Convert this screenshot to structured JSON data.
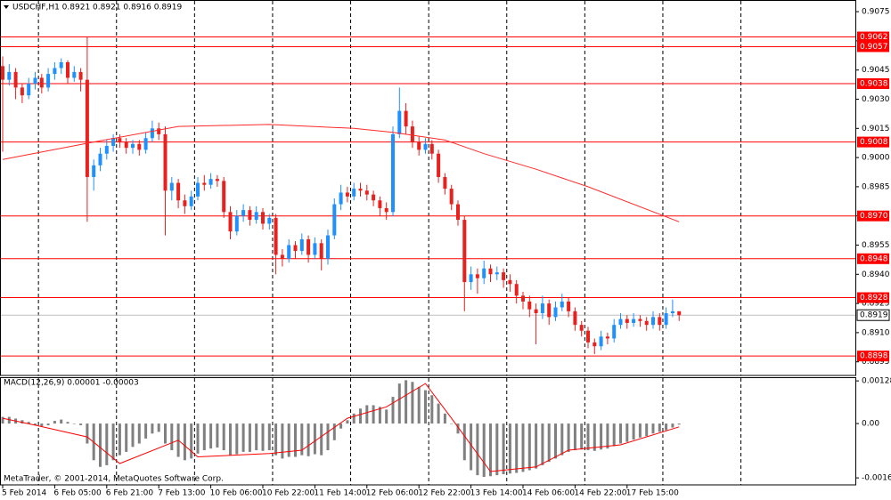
{
  "chart_data": [
    {
      "type": "candlestick",
      "title": "USDCHF,H1 0.8921 0.8921 0.8916 0.8919",
      "up_color": "#1e90ff",
      "down_color": "#e8211f",
      "ohlc": [
        [
          0.9047,
          0.9052,
          0.9003,
          0.904
        ],
        [
          0.904,
          0.9048,
          0.9037,
          0.9044
        ],
        [
          0.9044,
          0.9046,
          0.903,
          0.9036
        ],
        [
          0.9036,
          0.9038,
          0.9028,
          0.9032
        ],
        [
          0.9032,
          0.9041,
          0.903,
          0.9038
        ],
        [
          0.9038,
          0.9044,
          0.9035,
          0.9041
        ],
        [
          0.9041,
          0.9043,
          0.9033,
          0.9036
        ],
        [
          0.9036,
          0.9046,
          0.9034,
          0.9043
        ],
        [
          0.9043,
          0.9049,
          0.904,
          0.9046
        ],
        [
          0.9046,
          0.9051,
          0.9043,
          0.9049
        ],
        [
          0.9049,
          0.905,
          0.9038,
          0.9041
        ],
        [
          0.9041,
          0.9047,
          0.9039,
          0.9044
        ],
        [
          0.9044,
          0.9046,
          0.9034,
          0.904
        ],
        [
          0.904,
          0.9062,
          0.8967,
          0.899
        ],
        [
          0.899,
          0.8999,
          0.8983,
          0.8996
        ],
        [
          0.8996,
          0.9005,
          0.8993,
          0.9002
        ],
        [
          0.9002,
          0.9009,
          0.8999,
          0.9006
        ],
        [
          0.9006,
          0.9012,
          0.9003,
          0.901
        ],
        [
          0.901,
          0.9012,
          0.9005,
          0.9008
        ],
        [
          0.9008,
          0.901,
          0.9002,
          0.9005
        ],
        [
          0.9005,
          0.9009,
          0.9002,
          0.9007
        ],
        [
          0.9007,
          0.9009,
          0.9001,
          0.9004
        ],
        [
          0.9004,
          0.9013,
          0.9002,
          0.901
        ],
        [
          0.901,
          0.9019,
          0.9008,
          0.9015
        ],
        [
          0.9015,
          0.9018,
          0.9009,
          0.9012
        ],
        [
          0.9012,
          0.9016,
          0.896,
          0.8983
        ],
        [
          0.8983,
          0.899,
          0.8978,
          0.8987
        ],
        [
          0.8987,
          0.8989,
          0.8974,
          0.8978
        ],
        [
          0.8978,
          0.8981,
          0.8971,
          0.8975
        ],
        [
          0.8975,
          0.8983,
          0.8973,
          0.898
        ],
        [
          0.898,
          0.899,
          0.8978,
          0.8987
        ],
        [
          0.8987,
          0.8991,
          0.8983,
          0.8986
        ],
        [
          0.8986,
          0.8992,
          0.8984,
          0.8989
        ],
        [
          0.8989,
          0.8991,
          0.8985,
          0.8988
        ],
        [
          0.8988,
          0.899,
          0.8969,
          0.8972
        ],
        [
          0.8972,
          0.8975,
          0.8958,
          0.8962
        ],
        [
          0.8962,
          0.8973,
          0.896,
          0.897
        ],
        [
          0.897,
          0.8976,
          0.8967,
          0.8973
        ],
        [
          0.8973,
          0.8975,
          0.8965,
          0.8968
        ],
        [
          0.8968,
          0.8975,
          0.8966,
          0.8972
        ],
        [
          0.8972,
          0.8974,
          0.8963,
          0.8966
        ],
        [
          0.8966,
          0.8971,
          0.8963,
          0.8969
        ],
        [
          0.8969,
          0.8971,
          0.894,
          0.895
        ],
        [
          0.895,
          0.8953,
          0.8944,
          0.8948
        ],
        [
          0.8948,
          0.8958,
          0.8946,
          0.8955
        ],
        [
          0.8955,
          0.8957,
          0.8948,
          0.8952
        ],
        [
          0.8952,
          0.8961,
          0.895,
          0.8958
        ],
        [
          0.8958,
          0.896,
          0.8946,
          0.895
        ],
        [
          0.895,
          0.8959,
          0.8948,
          0.8956
        ],
        [
          0.8956,
          0.8958,
          0.8942,
          0.8948
        ],
        [
          0.8948,
          0.8963,
          0.8945,
          0.896
        ],
        [
          0.896,
          0.8979,
          0.8958,
          0.8976
        ],
        [
          0.8976,
          0.8986,
          0.8973,
          0.8982
        ],
        [
          0.8982,
          0.8985,
          0.8977,
          0.898
        ],
        [
          0.898,
          0.8987,
          0.8978,
          0.8984
        ],
        [
          0.8984,
          0.8987,
          0.898,
          0.8983
        ],
        [
          0.8983,
          0.8986,
          0.8978,
          0.8981
        ],
        [
          0.8981,
          0.8983,
          0.8975,
          0.8978
        ],
        [
          0.8978,
          0.898,
          0.897,
          0.8974
        ],
        [
          0.8974,
          0.8977,
          0.8968,
          0.8972
        ],
        [
          0.8972,
          0.9016,
          0.897,
          0.9012
        ],
        [
          0.9012,
          0.9036,
          0.901,
          0.9024
        ],
        [
          0.9024,
          0.9028,
          0.9012,
          0.9016
        ],
        [
          0.9016,
          0.9019,
          0.9005,
          0.9008
        ],
        [
          0.9008,
          0.9011,
          0.9001,
          0.9004
        ],
        [
          0.9004,
          0.901,
          0.9002,
          0.9007
        ],
        [
          0.9007,
          0.9009,
          0.8999,
          0.9002
        ],
        [
          0.9002,
          0.9004,
          0.8987,
          0.899
        ],
        [
          0.899,
          0.8992,
          0.8981,
          0.8984
        ],
        [
          0.8984,
          0.8986,
          0.8973,
          0.8976
        ],
        [
          0.8976,
          0.8978,
          0.8965,
          0.8968
        ],
        [
          0.8968,
          0.897,
          0.8921,
          0.8936
        ],
        [
          0.8936,
          0.8944,
          0.8932,
          0.894
        ],
        [
          0.894,
          0.8943,
          0.893,
          0.8938
        ],
        [
          0.8938,
          0.8947,
          0.8935,
          0.8943
        ],
        [
          0.8943,
          0.8945,
          0.8936,
          0.894
        ],
        [
          0.894,
          0.8944,
          0.8937,
          0.8941
        ],
        [
          0.8941,
          0.8943,
          0.8933,
          0.8937
        ],
        [
          0.8937,
          0.894,
          0.8931,
          0.8935
        ],
        [
          0.8935,
          0.8937,
          0.8925,
          0.8929
        ],
        [
          0.8929,
          0.8931,
          0.8922,
          0.8926
        ],
        [
          0.8926,
          0.8929,
          0.8918,
          0.8922
        ],
        [
          0.8922,
          0.8925,
          0.8904,
          0.892
        ],
        [
          0.892,
          0.8929,
          0.8917,
          0.8925
        ],
        [
          0.8925,
          0.8927,
          0.8914,
          0.8918
        ],
        [
          0.8918,
          0.8926,
          0.8916,
          0.8923
        ],
        [
          0.8923,
          0.893,
          0.8921,
          0.8926
        ],
        [
          0.8926,
          0.8928,
          0.8918,
          0.8921
        ],
        [
          0.8921,
          0.8923,
          0.8911,
          0.8914
        ],
        [
          0.8914,
          0.8916,
          0.8908,
          0.8911
        ],
        [
          0.8911,
          0.8913,
          0.8902,
          0.8905
        ],
        [
          0.8905,
          0.8907,
          0.8899,
          0.8903
        ],
        [
          0.8903,
          0.8911,
          0.8901,
          0.8908
        ],
        [
          0.8908,
          0.891,
          0.8904,
          0.8907
        ],
        [
          0.8907,
          0.8917,
          0.8905,
          0.8914
        ],
        [
          0.8914,
          0.892,
          0.8912,
          0.8917
        ],
        [
          0.8917,
          0.8919,
          0.8912,
          0.8915
        ],
        [
          0.8915,
          0.892,
          0.8913,
          0.8917
        ],
        [
          0.8917,
          0.8919,
          0.8913,
          0.8916
        ],
        [
          0.8916,
          0.8918,
          0.8911,
          0.8914
        ],
        [
          0.8914,
          0.8921,
          0.8912,
          0.8918
        ],
        [
          0.8918,
          0.892,
          0.8911,
          0.8914
        ],
        [
          0.8914,
          0.8923,
          0.8912,
          0.892
        ],
        [
          0.892,
          0.8927,
          0.8918,
          0.8921
        ],
        [
          0.8921,
          0.8921,
          0.8916,
          0.8919
        ]
      ],
      "ma": {
        "x": [
          0,
          14,
          27,
          41,
          54,
          60,
          68,
          74,
          82,
          90,
          104
        ],
        "values": [
          0.8999,
          0.9008,
          0.9016,
          0.9017,
          0.9015,
          0.9013,
          0.9009,
          0.9002,
          0.8994,
          0.8985,
          0.8967
        ],
        "color": "#ff2a2a"
      },
      "levels": {
        "values": [
          0.9062,
          0.9057,
          0.9038,
          0.9008,
          0.897,
          0.8948,
          0.8928,
          0.8898
        ],
        "value_labels": [
          "0.9062",
          "0.9057",
          "0.9038",
          "0.9008",
          "0.8970",
          "0.8948",
          "0.8928",
          "0.8898"
        ],
        "color": "#ff0000"
      },
      "current_price": 0.8919,
      "ylim": [
        0.8888,
        0.9081
      ],
      "yticks": [
        0.8895,
        {
          "value": 0.891,
          "label": "0.8910"
        },
        0.8925,
        {
          "value": 0.894,
          "label": "0.8940"
        },
        0.8955,
        {
          "value": 0.897,
          "label": "0.8970"
        },
        0.8985,
        {
          "value": 0.9,
          "label": "0.9000"
        },
        0.9015,
        {
          "value": 0.903,
          "label": "0.9030"
        },
        0.9045,
        {
          "value": 0.906,
          "label": "0.9060"
        },
        0.9075
      ],
      "xticks": [
        {
          "value": 0,
          "label": "5 Feb 2014"
        },
        {
          "value": 8,
          "label": "6 Feb 05:00"
        },
        {
          "value": 16,
          "label": "6 Feb 21:00"
        },
        {
          "value": 24,
          "label": "7 Feb 13:00"
        },
        {
          "value": 32,
          "label": "10 Feb 06:00"
        },
        {
          "value": 40,
          "label": "10 Feb 22:00"
        },
        {
          "value": 48,
          "label": "11 Feb 14:00"
        },
        {
          "value": 56,
          "label": "12 Feb 06:00"
        },
        {
          "value": 64,
          "label": "12 Feb 22:00"
        },
        {
          "value": 72,
          "label": "13 Feb 14:00"
        },
        {
          "value": 80,
          "label": "14 Feb 06:00"
        },
        {
          "value": 88,
          "label": "14 Feb 22:00"
        },
        {
          "value": 96,
          "label": "17 Feb 15:00"
        }
      ]
    },
    {
      "type": "macd",
      "title": "MACD(12,26,9) 0.00001 -0.00003",
      "color": "#808080",
      "values": [
        0.0002,
        0.0002,
        0.00015,
        0.0001,
        5e-05,
        -5e-05,
        -8e-05,
        -5e-05,
        8e-05,
        0.00012,
        5e-05,
        0,
        -5e-05,
        -0.0006,
        -0.0011,
        -0.0013,
        -0.00125,
        -0.0011,
        -0.00095,
        -0.00085,
        -0.0007,
        -0.0006,
        -0.00045,
        -0.0003,
        -0.00025,
        -0.0006,
        -0.0008,
        -0.001,
        -0.0011,
        -0.00105,
        -0.0009,
        -0.0008,
        -0.00075,
        -0.00072,
        -0.0008,
        -0.00095,
        -0.00092,
        -0.00085,
        -0.00085,
        -0.0008,
        -0.00082,
        -0.0008,
        -0.00095,
        -0.00105,
        -0.001,
        -0.001,
        -0.00095,
        -0.00098,
        -0.00092,
        -0.00095,
        -0.0008,
        -0.0005,
        -0.00015,
        0.0001,
        0.0003,
        0.00045,
        0.00055,
        0.00055,
        0.0005,
        0.00042,
        0.0008,
        0.0012,
        0.0013,
        0.00125,
        0.0011,
        0.001,
        0.00085,
        0.0006,
        0.0003,
        0,
        -0.0003,
        -0.0011,
        -0.0014,
        -0.00155,
        -0.0016,
        -0.00158,
        -0.00155,
        -0.00152,
        -0.0015,
        -0.00148,
        -0.00145,
        -0.0014,
        -0.00135,
        -0.00125,
        -0.00115,
        -0.00105,
        -0.00095,
        -0.00085,
        -0.0008,
        -0.00078,
        -0.0008,
        -0.00082,
        -0.00078,
        -0.00075,
        -0.00068,
        -0.0006,
        -0.00055,
        -0.00048,
        -0.00042,
        -0.00038,
        -0.0003,
        -0.00025,
        -0.0002,
        -0.00012,
        -3e-05
      ],
      "signal": {
        "x": [
          0,
          5,
          13,
          18,
          27,
          30,
          41,
          46,
          53,
          59,
          65,
          69,
          75,
          82,
          87,
          95,
          104
        ],
        "values": [
          0.00016,
          -5e-05,
          -0.0004,
          -0.0012,
          -0.0005,
          -0.001,
          -0.0009,
          -0.0008,
          0.00016,
          0.0005,
          0.0012,
          0.00016,
          -0.00144,
          -0.0013,
          -0.0008,
          -0.00064,
          -0.0001
        ],
        "color": "#ff0000"
      },
      "ylim": [
        -0.00184,
        0.00139
      ],
      "yticks": [
        0.00128,
        {
          "value": 0,
          "label": "0.00"
        },
        -0.00163
      ]
    }
  ],
  "footer": "MetaTrader, © 2001-2014, MetaQuotes Software Corp."
}
